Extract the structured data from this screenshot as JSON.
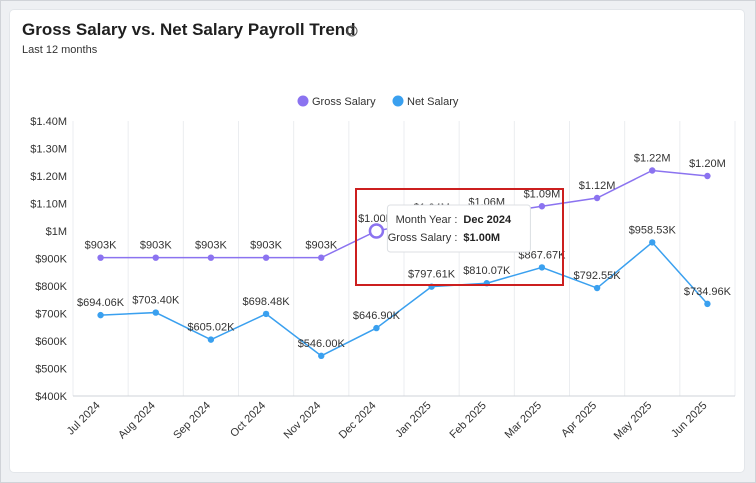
{
  "header": {
    "title": "Gross Salary vs. Net Salary Payroll Trend",
    "subtitle": "Last 12 months",
    "info_icon": "info-icon"
  },
  "chart_data": {
    "type": "line",
    "title": "Gross Salary vs. Net Salary Payroll Trend",
    "subtitle": "Last 12 months",
    "categories": [
      "Jul 2024",
      "Aug 2024",
      "Sep 2024",
      "Oct 2024",
      "Nov 2024",
      "Dec 2024",
      "Jan 2025",
      "Feb 2025",
      "Mar 2025",
      "Apr 2025",
      "May 2025",
      "Jun 2025"
    ],
    "series": [
      {
        "name": "Gross Salary",
        "color": "#8b73f0",
        "values": [
          903000,
          903000,
          903000,
          903000,
          903000,
          1000000,
          1040000,
          1060000,
          1090000,
          1120000,
          1220000,
          1200000
        ],
        "labels": [
          "$903K",
          "$903K",
          "$903K",
          "$903K",
          "$903K",
          "$1.00M",
          "$1.04M",
          "$1.06M",
          "$1.09M",
          "$1.12M",
          "$1.22M",
          "$1.20M"
        ]
      },
      {
        "name": "Net Salary",
        "color": "#3aa0ef",
        "values": [
          694060,
          703400,
          605020,
          698480,
          546000,
          646900,
          797610,
          810070,
          867670,
          792550,
          958530,
          734960
        ],
        "labels": [
          "$694.06K",
          "$703.40K",
          "$605.02K",
          "$698.48K",
          "$546.00K",
          "$646.90K",
          "$797.61K",
          "$810.07K",
          "$867.67K",
          "$792.55K",
          "$958.53K",
          "$734.96K"
        ]
      }
    ],
    "ylim": [
      400000,
      1400000
    ],
    "yticks": [
      400000,
      500000,
      600000,
      700000,
      800000,
      900000,
      1000000,
      1100000,
      1200000,
      1300000,
      1400000
    ],
    "ytick_labels": [
      "$400K",
      "$500K",
      "$600K",
      "$700K",
      "$800K",
      "$900K",
      "$1M",
      "$1.10M",
      "$1.20M",
      "$1.30M",
      "$1.40M"
    ],
    "xlabel": "",
    "ylabel": "",
    "legend_position": "top-center",
    "grid": "vertical",
    "tooltip": {
      "category_index": 5,
      "series_index": 0,
      "row1_label": "Month Year :",
      "row1_value": "Dec 2024",
      "row2_label": "Gross Salary :",
      "row2_value": "$1.00M"
    },
    "highlight_color": "#cc1f1f"
  }
}
